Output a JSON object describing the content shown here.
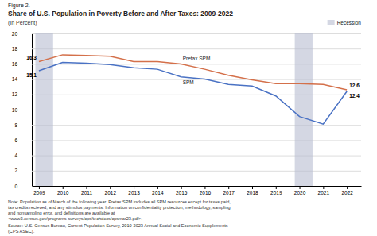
{
  "chart_data": {
    "type": "line",
    "figure_label": "Figure 2.",
    "title": "Share of U.S. Population in Poverty Before and After Taxes: 2009-2022",
    "subtitle": "(In Percent)",
    "x": [
      2009,
      2010,
      2011,
      2012,
      2013,
      2014,
      2015,
      2016,
      2017,
      2018,
      2019,
      2020,
      2021,
      2022
    ],
    "xlim": [
      2008.7,
      2022.6
    ],
    "xticks": [
      2009,
      2010,
      2011,
      2012,
      2013,
      2014,
      2015,
      2016,
      2017,
      2018,
      2019,
      2020,
      2021,
      2022
    ],
    "ylim": [
      0,
      20
    ],
    "yticks": [
      0,
      2,
      4,
      6,
      8,
      10,
      12,
      14,
      16,
      18,
      20
    ],
    "grid": true,
    "legend": "upper right",
    "series": [
      {
        "name": "Pretax SPM",
        "color": "#d4704a",
        "values": [
          16.3,
          17.2,
          17.1,
          17.0,
          16.3,
          16.3,
          16.0,
          15.3,
          14.5,
          13.9,
          13.4,
          13.4,
          13.3,
          12.6
        ]
      },
      {
        "name": "SPM",
        "color": "#4a72c4",
        "values": [
          15.1,
          16.2,
          16.1,
          15.9,
          15.5,
          15.3,
          14.3,
          14.0,
          13.3,
          13.1,
          11.8,
          9.1,
          8.1,
          12.4
        ]
      }
    ],
    "recession": {
      "name": "Recession",
      "color": "#b8bdd1",
      "bands": [
        [
          2008.85,
          2009.6
        ],
        [
          2019.8,
          2020.55
        ]
      ]
    },
    "annotations": [
      {
        "text": "16.3",
        "x": 2009,
        "y": 16.3
      },
      {
        "text": "15.1",
        "x": 2009,
        "y": 15.1
      },
      {
        "text": "12.6",
        "x": 2022,
        "y": 12.6
      },
      {
        "text": "12.4",
        "x": 2022,
        "y": 12.4
      }
    ],
    "note": "Note: Population as of March of the following year. Pretax SPM includes all SPM resources except for taxes paid,\ntax credits recieved, and any stimulus payments. Information on confidentiality protection, methodology, sampling\nand nonsampling error, and definitions are available at\n<www2.census.gov/programs-surveys/cps/techdocs/cpsmar23.pdf>.",
    "source": "Source: U.S. Census Bureau, Current Population Survey, 2010-2023 Annual Social and Economic Supplements\n(CPS ASEC)."
  }
}
